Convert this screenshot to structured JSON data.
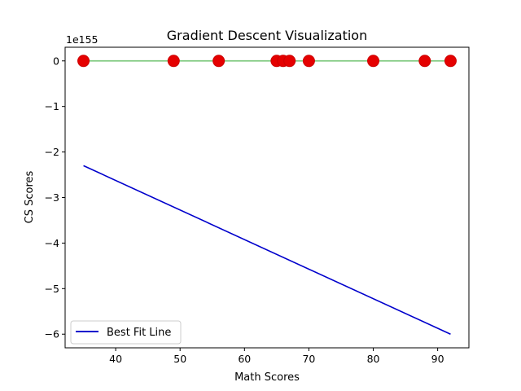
{
  "chart_data": {
    "type": "scatter",
    "title": "Gradient Descent Visualization",
    "xlabel": "Math Scores",
    "ylabel": "CS Scores",
    "offset_text": "1e155",
    "xlim": [
      32.15,
      94.85
    ],
    "ylim": [
      -6.3,
      0.3
    ],
    "x_ticks": [
      40,
      50,
      60,
      70,
      80,
      90
    ],
    "y_ticks": [
      0,
      -1,
      -2,
      -3,
      -4,
      -5,
      -6
    ],
    "x_tick_labels": [
      "40",
      "50",
      "60",
      "70",
      "80",
      "90"
    ],
    "y_tick_labels": [
      "0",
      "−1",
      "−2",
      "−3",
      "−4",
      "−5",
      "−6"
    ],
    "series": [
      {
        "kind": "scatter",
        "color": "#e50000",
        "x": [
          35,
          49,
          56,
          65,
          66,
          67,
          70,
          80,
          88,
          92
        ],
        "y": [
          0,
          0,
          0,
          0,
          0,
          0,
          0,
          0,
          0,
          0
        ]
      },
      {
        "kind": "line",
        "color": "#7fc97f",
        "x": [
          35,
          92
        ],
        "y": [
          0,
          0
        ]
      },
      {
        "kind": "line",
        "name": "Best Fit Line",
        "color": "#0000cc",
        "x": [
          35,
          92
        ],
        "y": [
          -2.3,
          -6.0
        ]
      }
    ],
    "legend": {
      "placement": "lower-left",
      "entries": [
        "Best Fit Line"
      ]
    }
  }
}
